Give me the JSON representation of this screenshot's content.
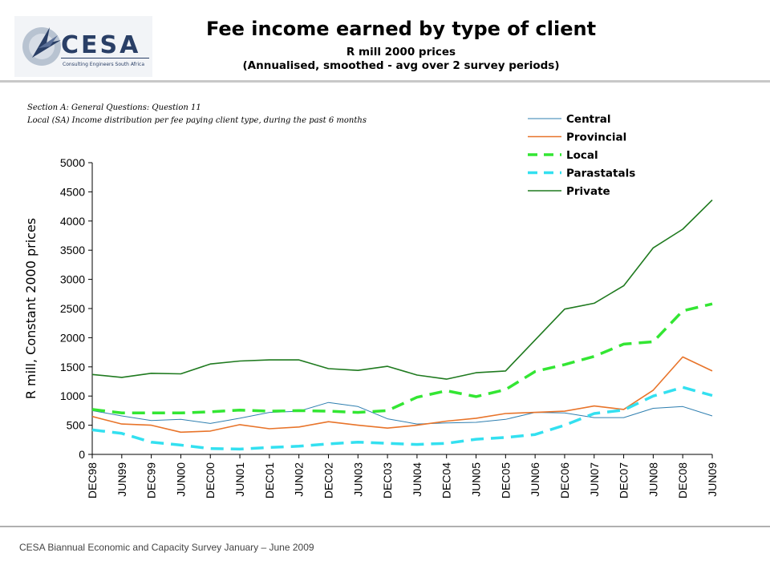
{
  "header": {
    "logo_text": "CESA",
    "logo_tagline": "Consulting Engineers South Africa",
    "title": "Fee income earned by type of client",
    "subtitle_line1": "R mill 2000 prices",
    "subtitle_line2": "(Annualised, smoothed - avg over 2 survey periods)"
  },
  "notes": {
    "line1": "Section A: General Questions: Question 11",
    "line2": "Local (SA) Income distribution per fee paying client type, during the past 6 months"
  },
  "footer": {
    "text": "CESA Biannual Economic and Capacity Survey January – June 2009"
  },
  "chart_data": {
    "type": "line",
    "ylabel": "R mill, Constant 2000 prices",
    "xlabel": "",
    "ylim": [
      0,
      5000
    ],
    "yticks": [
      0,
      500,
      1000,
      1500,
      2000,
      2500,
      3000,
      3500,
      4000,
      4500,
      5000
    ],
    "grid": false,
    "legend_position": "top-right",
    "categories": [
      "DEC98",
      "JUN99",
      "DEC99",
      "JUN00",
      "DEC00",
      "JUN01",
      "DEC01",
      "JUN02",
      "DEC02",
      "JUN03",
      "DEC03",
      "JUN04",
      "DEC04",
      "JUN05",
      "DEC05",
      "JUN06",
      "DEC06",
      "JUN07",
      "DEC07",
      "JUN08",
      "DEC08",
      "JUN09"
    ],
    "series": [
      {
        "name": "Central",
        "color": "#2f7fb0",
        "style": "solid-thin",
        "values": [
          750,
          660,
          580,
          600,
          530,
          620,
          720,
          740,
          890,
          820,
          610,
          520,
          540,
          550,
          600,
          720,
          710,
          630,
          630,
          790,
          820,
          660
        ]
      },
      {
        "name": "Provincial",
        "color": "#e8742a",
        "style": "solid",
        "values": [
          650,
          520,
          500,
          380,
          400,
          510,
          440,
          470,
          560,
          500,
          450,
          500,
          570,
          620,
          700,
          720,
          740,
          830,
          770,
          1100,
          1670,
          1430
        ]
      },
      {
        "name": "Local",
        "color": "#33e633",
        "style": "dashed",
        "values": [
          770,
          710,
          710,
          710,
          730,
          760,
          740,
          750,
          740,
          720,
          750,
          980,
          1090,
          990,
          1110,
          1420,
          1540,
          1680,
          1890,
          1930,
          2460,
          2580
        ]
      },
      {
        "name": "Parastatals",
        "color": "#33e0f0",
        "style": "dashed",
        "values": [
          420,
          360,
          210,
          160,
          100,
          90,
          120,
          140,
          180,
          210,
          190,
          170,
          190,
          260,
          290,
          340,
          500,
          700,
          760,
          1000,
          1150,
          1010
        ]
      },
      {
        "name": "Private",
        "color": "#1f7a1f",
        "style": "solid",
        "values": [
          1370,
          1320,
          1390,
          1380,
          1550,
          1600,
          1620,
          1620,
          1470,
          1440,
          1510,
          1360,
          1290,
          1400,
          1430,
          1960,
          2490,
          2590,
          2890,
          3540,
          3860,
          4360
        ]
      }
    ]
  }
}
